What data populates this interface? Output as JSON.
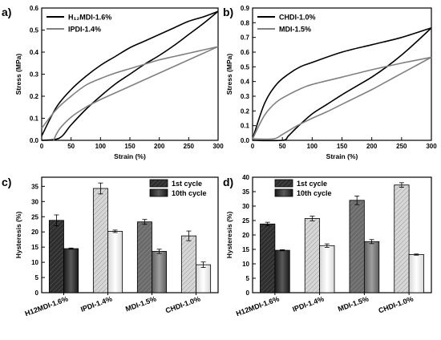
{
  "colors": {
    "series_dark": "#000000",
    "series_gray": "#808080",
    "bar_dark": "#2b2b2b",
    "bar_mid": "#707070",
    "bar_light": "#cfcfcf",
    "bar_white": "#f2f2f2"
  },
  "chart_data": [
    {
      "id": "a",
      "panel_label": "a)",
      "type": "line",
      "xlabel": "Strain (%)",
      "ylabel": "Stress (MPa)",
      "xlim": [
        0,
        300
      ],
      "ylim": [
        0,
        0.6
      ],
      "xticks": [
        0,
        50,
        100,
        150,
        200,
        250,
        300
      ],
      "yticks": [
        0,
        0.1,
        0.2,
        0.3,
        0.4,
        0.5,
        0.6
      ],
      "ytick_labels": [
        "0.0",
        "0.1",
        "0.2",
        "0.3",
        "0.4",
        "0.5",
        "0.6"
      ],
      "legend_position": "top-left",
      "series": [
        {
          "name": "H₁₂MDI-1.6%",
          "color": "#000000",
          "loading": [
            [
              0,
              0.02
            ],
            [
              25,
              0.15
            ],
            [
              50,
              0.23
            ],
            [
              75,
              0.29
            ],
            [
              100,
              0.34
            ],
            [
              125,
              0.38
            ],
            [
              150,
              0.42
            ],
            [
              175,
              0.45
            ],
            [
              200,
              0.48
            ],
            [
              225,
              0.51
            ],
            [
              250,
              0.54
            ],
            [
              275,
              0.56
            ],
            [
              300,
              0.585
            ]
          ],
          "unloading": [
            [
              300,
              0.585
            ],
            [
              275,
              0.53
            ],
            [
              250,
              0.48
            ],
            [
              225,
              0.43
            ],
            [
              200,
              0.385
            ],
            [
              175,
              0.345
            ],
            [
              150,
              0.3
            ],
            [
              125,
              0.255
            ],
            [
              100,
              0.2
            ],
            [
              75,
              0.14
            ],
            [
              50,
              0.07
            ],
            [
              30,
              0.01
            ],
            [
              0,
              0.0
            ]
          ]
        },
        {
          "name": "IPDI-1.4%",
          "color": "#808080",
          "loading": [
            [
              0,
              0.055
            ],
            [
              25,
              0.14
            ],
            [
              50,
              0.2
            ],
            [
              75,
              0.25
            ],
            [
              100,
              0.28
            ],
            [
              125,
              0.305
            ],
            [
              150,
              0.325
            ],
            [
              175,
              0.345
            ],
            [
              200,
              0.365
            ],
            [
              225,
              0.38
            ],
            [
              250,
              0.395
            ],
            [
              275,
              0.41
            ],
            [
              300,
              0.425
            ]
          ],
          "unloading": [
            [
              300,
              0.425
            ],
            [
              275,
              0.395
            ],
            [
              250,
              0.365
            ],
            [
              225,
              0.335
            ],
            [
              200,
              0.305
            ],
            [
              175,
              0.275
            ],
            [
              150,
              0.245
            ],
            [
              125,
              0.215
            ],
            [
              100,
              0.185
            ],
            [
              75,
              0.15
            ],
            [
              50,
              0.105
            ],
            [
              30,
              0.05
            ],
            [
              20,
              0.0
            ]
          ]
        }
      ]
    },
    {
      "id": "b",
      "panel_label": "b)",
      "type": "line",
      "xlabel": "Strain (%)",
      "ylabel": "Stress (MPa)",
      "xlim": [
        0,
        300
      ],
      "ylim": [
        0,
        0.9
      ],
      "xticks": [
        0,
        50,
        100,
        150,
        200,
        250,
        300
      ],
      "yticks": [
        0,
        0.1,
        0.2,
        0.3,
        0.4,
        0.5,
        0.6,
        0.7,
        0.8,
        0.9
      ],
      "ytick_labels": [
        "0.0",
        "0.1",
        "0.2",
        "0.3",
        "0.4",
        "0.5",
        "0.6",
        "0.7",
        "0.8",
        "0.9"
      ],
      "legend_position": "top-left",
      "series": [
        {
          "name": "CHDI-1.0%",
          "color": "#000000",
          "loading": [
            [
              0,
              0.01
            ],
            [
              20,
              0.25
            ],
            [
              40,
              0.38
            ],
            [
              60,
              0.45
            ],
            [
              80,
              0.5
            ],
            [
              100,
              0.53
            ],
            [
              150,
              0.6
            ],
            [
              200,
              0.65
            ],
            [
              250,
              0.7
            ],
            [
              300,
              0.765
            ]
          ],
          "unloading": [
            [
              300,
              0.765
            ],
            [
              275,
              0.67
            ],
            [
              250,
              0.58
            ],
            [
              225,
              0.5
            ],
            [
              200,
              0.43
            ],
            [
              175,
              0.37
            ],
            [
              150,
              0.31
            ],
            [
              125,
              0.245
            ],
            [
              100,
              0.18
            ],
            [
              75,
              0.09
            ],
            [
              60,
              0.03
            ],
            [
              50,
              0.0
            ],
            [
              0,
              0.0
            ]
          ]
        },
        {
          "name": "MDI-1.5%",
          "color": "#808080",
          "loading": [
            [
              0,
              0.01
            ],
            [
              20,
              0.17
            ],
            [
              40,
              0.26
            ],
            [
              60,
              0.31
            ],
            [
              80,
              0.35
            ],
            [
              100,
              0.38
            ],
            [
              150,
              0.43
            ],
            [
              200,
              0.48
            ],
            [
              250,
              0.525
            ],
            [
              300,
              0.565
            ]
          ],
          "unloading": [
            [
              300,
              0.565
            ],
            [
              275,
              0.51
            ],
            [
              250,
              0.455
            ],
            [
              225,
              0.4
            ],
            [
              200,
              0.345
            ],
            [
              175,
              0.295
            ],
            [
              150,
              0.245
            ],
            [
              125,
              0.195
            ],
            [
              100,
              0.15
            ],
            [
              75,
              0.1
            ],
            [
              50,
              0.04
            ],
            [
              35,
              0.01
            ],
            [
              0,
              0.01
            ]
          ]
        }
      ]
    },
    {
      "id": "c",
      "panel_label": "c)",
      "type": "bar",
      "ylabel": "Hysteresis (%)",
      "ylim": [
        0,
        38
      ],
      "yticks": [
        0,
        5,
        10,
        15,
        20,
        25,
        30,
        35
      ],
      "categories": [
        "H12MDI-1.6%",
        "IPDI-1.4%",
        "MDI-1.5%",
        "CHDI-1.0%"
      ],
      "legend_position": "top-right",
      "legend": [
        "1st cycle",
        "10th cycle"
      ],
      "series": [
        {
          "name": "1st cycle",
          "values": [
            23.8,
            34.3,
            23.3,
            18.7
          ],
          "errors": [
            1.8,
            1.8,
            0.8,
            1.6
          ]
        },
        {
          "name": "10th cycle",
          "values": [
            14.5,
            20.2,
            13.6,
            9.2
          ],
          "errors": [
            0.2,
            0.4,
            0.7,
            0.9
          ]
        }
      ]
    },
    {
      "id": "d",
      "panel_label": "d)",
      "type": "bar",
      "ylabel": "Hysteresis (%)",
      "ylim": [
        0,
        40
      ],
      "yticks": [
        0,
        5,
        10,
        15,
        20,
        25,
        30,
        35,
        40
      ],
      "categories": [
        "H12MDI-1.6%",
        "IPDI-1.4%",
        "MDI-1.5%",
        "CHDI-1.0%"
      ],
      "legend_position": "top-left",
      "legend": [
        "1st cycle",
        "10th cycle"
      ],
      "series": [
        {
          "name": "1st cycle",
          "values": [
            23.8,
            25.7,
            32.0,
            37.3
          ],
          "errors": [
            0.6,
            0.8,
            1.5,
            0.8
          ]
        },
        {
          "name": "10th cycle",
          "values": [
            14.7,
            16.3,
            17.7,
            13.2
          ],
          "errors": [
            0.2,
            0.6,
            0.7,
            0.2
          ]
        }
      ]
    }
  ]
}
